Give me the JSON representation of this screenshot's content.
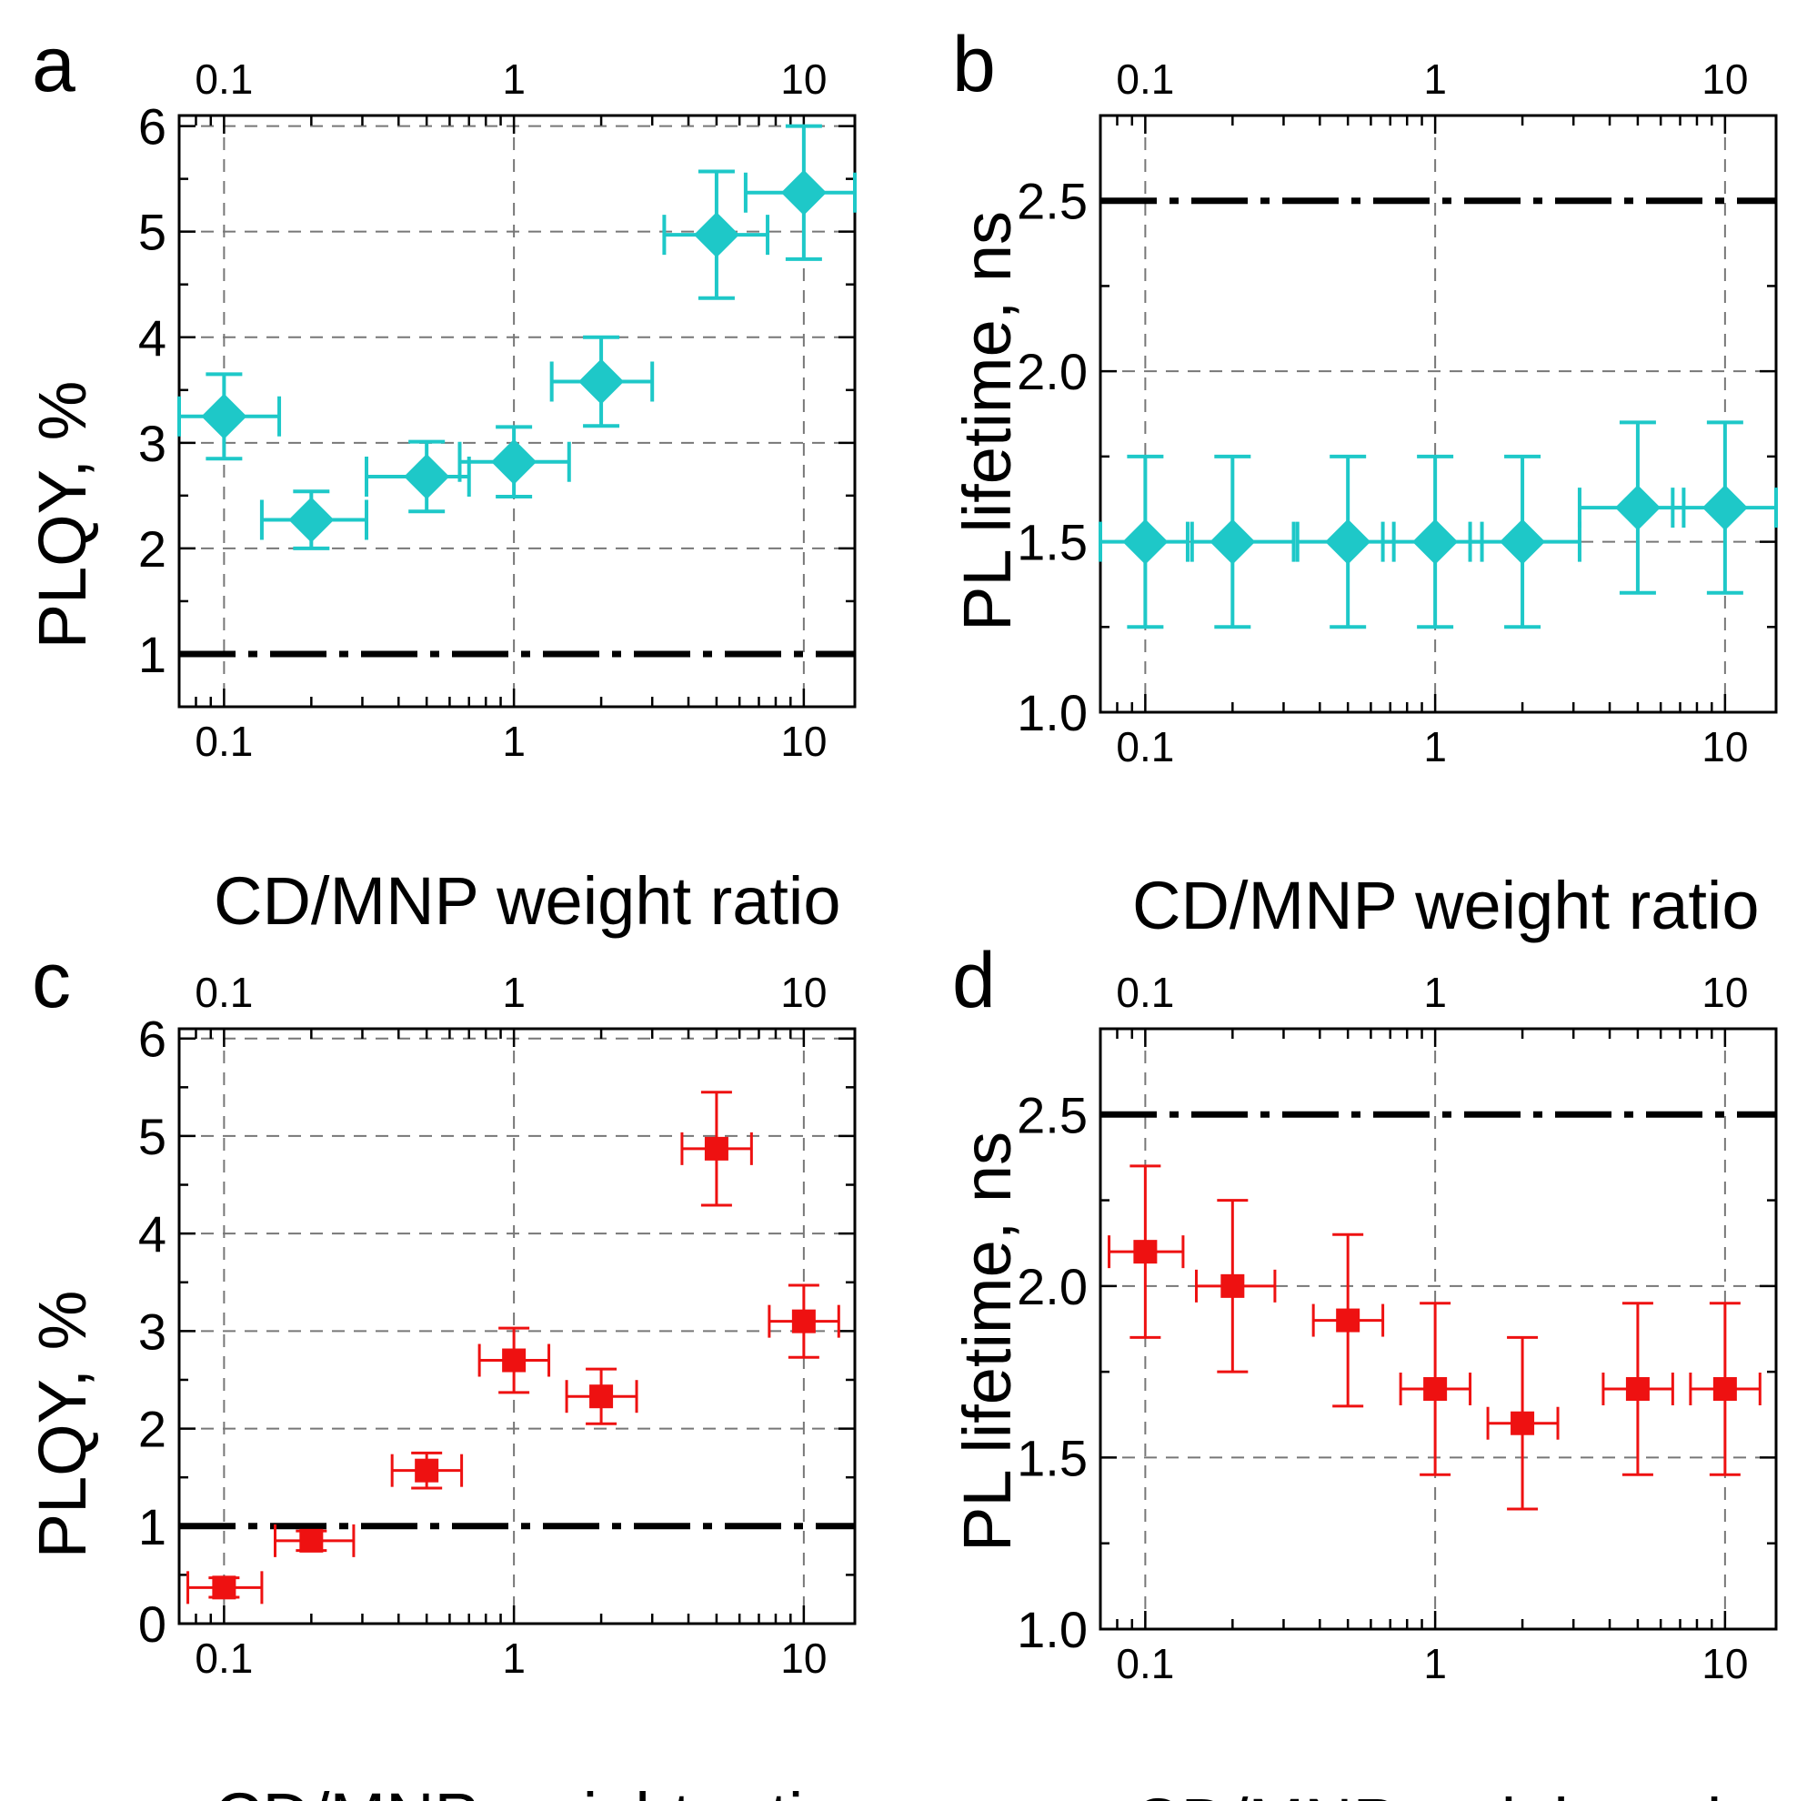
{
  "chart_data": [
    {
      "panel": "a",
      "type": "scatter",
      "xscale": "log",
      "xlim": [
        0.07,
        15
      ],
      "ylim": [
        0.5,
        6.1
      ],
      "xticks": [
        0.1,
        1,
        10
      ],
      "xtick_labels": [
        "0.1",
        "1",
        "10"
      ],
      "yticks": [
        1,
        2,
        3,
        4,
        5,
        6
      ],
      "ytick_labels": [
        "1",
        "2",
        "3",
        "4",
        "5",
        "6"
      ],
      "xlabel": "CD/MNP weight ratio",
      "ylabel": "PLQY, %",
      "reference_line": 1,
      "marker": "diamond",
      "color": "#1ec8c8",
      "series": [
        {
          "name": "PLQY",
          "points": [
            {
              "x": 0.1,
              "y": 3.25,
              "xerr_lo": 0.07,
              "xerr_hi": 0.155,
              "yerr": 0.4
            },
            {
              "x": 0.2,
              "y": 2.27,
              "xerr_lo": 0.135,
              "xerr_hi": 0.31,
              "yerr": 0.27
            },
            {
              "x": 0.5,
              "y": 2.68,
              "xerr_lo": 0.31,
              "xerr_hi": 0.7,
              "yerr": 0.33
            },
            {
              "x": 1,
              "y": 2.82,
              "xerr_lo": 0.65,
              "xerr_hi": 1.55,
              "yerr": 0.33
            },
            {
              "x": 2,
              "y": 3.58,
              "xerr_lo": 1.35,
              "xerr_hi": 3.0,
              "yerr": 0.42
            },
            {
              "x": 5,
              "y": 4.97,
              "xerr_lo": 3.3,
              "xerr_hi": 7.5,
              "yerr": 0.6
            },
            {
              "x": 10,
              "y": 5.37,
              "xerr_lo": 6.3,
              "xerr_hi": 15,
              "yerr": 0.63
            }
          ]
        }
      ]
    },
    {
      "panel": "b",
      "type": "scatter",
      "xscale": "log",
      "xlim": [
        0.07,
        15
      ],
      "ylim": [
        1.0,
        2.75
      ],
      "xticks": [
        0.1,
        1,
        10
      ],
      "xtick_labels": [
        "0.1",
        "1",
        "10"
      ],
      "yticks": [
        1.0,
        1.5,
        2.0,
        2.5
      ],
      "ytick_labels": [
        "1.0",
        "1.5",
        "2.0",
        "2.5"
      ],
      "xlabel": "CD/MNP weight ratio",
      "ylabel": "PL lifetime, ns",
      "reference_line": 2.5,
      "marker": "diamond",
      "color": "#1ec8c8",
      "series": [
        {
          "name": "PL lifetime",
          "points": [
            {
              "x": 0.1,
              "y": 1.5,
              "xerr_lo": 0.07,
              "xerr_hi": 0.14,
              "yerr": 0.25
            },
            {
              "x": 0.2,
              "y": 1.5,
              "xerr_lo": 0.145,
              "xerr_hi": 0.325,
              "yerr": 0.25
            },
            {
              "x": 0.5,
              "y": 1.5,
              "xerr_lo": 0.335,
              "xerr_hi": 0.72,
              "yerr": 0.25
            },
            {
              "x": 1,
              "y": 1.5,
              "xerr_lo": 0.66,
              "xerr_hi": 1.45,
              "yerr": 0.25
            },
            {
              "x": 2,
              "y": 1.5,
              "xerr_lo": 1.32,
              "xerr_hi": 3.15,
              "yerr": 0.25
            },
            {
              "x": 5,
              "y": 1.6,
              "xerr_lo": 3.15,
              "xerr_hi": 7.2,
              "yerr": 0.25
            },
            {
              "x": 10,
              "y": 1.6,
              "xerr_lo": 6.6,
              "xerr_hi": 15,
              "yerr": 0.25
            }
          ]
        }
      ]
    },
    {
      "panel": "c",
      "type": "scatter",
      "xscale": "log",
      "xlim": [
        0.07,
        15
      ],
      "ylim": [
        0,
        6.1
      ],
      "xticks": [
        0.1,
        1,
        10
      ],
      "xtick_labels": [
        "0.1",
        "1",
        "10"
      ],
      "yticks": [
        0,
        1,
        2,
        3,
        4,
        5,
        6
      ],
      "ytick_labels": [
        "0",
        "1",
        "2",
        "3",
        "4",
        "5",
        "6"
      ],
      "xlabel": "CD/MNP weight ratio",
      "ylabel": "PLQY, %",
      "reference_line": 1,
      "marker": "square",
      "color": "#ee1111",
      "series": [
        {
          "name": "PLQY",
          "points": [
            {
              "x": 0.1,
              "y": 0.37,
              "xerr_lo": 0.075,
              "xerr_hi": 0.135,
              "yerr": 0.1
            },
            {
              "x": 0.2,
              "y": 0.85,
              "xerr_lo": 0.15,
              "xerr_hi": 0.28,
              "yerr": 0.1
            },
            {
              "x": 0.5,
              "y": 1.57,
              "xerr_lo": 0.38,
              "xerr_hi": 0.66,
              "yerr": 0.18
            },
            {
              "x": 1,
              "y": 2.7,
              "xerr_lo": 0.76,
              "xerr_hi": 1.32,
              "yerr": 0.33
            },
            {
              "x": 2,
              "y": 2.33,
              "xerr_lo": 1.52,
              "xerr_hi": 2.65,
              "yerr": 0.28
            },
            {
              "x": 5,
              "y": 4.87,
              "xerr_lo": 3.8,
              "xerr_hi": 6.6,
              "yerr": 0.58
            },
            {
              "x": 10,
              "y": 3.1,
              "xerr_lo": 7.6,
              "xerr_hi": 13.2,
              "yerr": 0.37
            }
          ]
        }
      ]
    },
    {
      "panel": "d",
      "type": "scatter",
      "xscale": "log",
      "xlim": [
        0.07,
        15
      ],
      "ylim": [
        1.0,
        2.75
      ],
      "xticks": [
        0.1,
        1,
        10
      ],
      "xtick_labels": [
        "0.1",
        "1",
        "10"
      ],
      "yticks": [
        1.0,
        1.5,
        2.0,
        2.5
      ],
      "ytick_labels": [
        "1.0",
        "1.5",
        "2.0",
        "2.5"
      ],
      "xlabel": "CD/MNP weight ratio",
      "ylabel": "PL lifetime, ns",
      "reference_line": 2.5,
      "marker": "square",
      "color": "#ee1111",
      "series": [
        {
          "name": "PL lifetime",
          "points": [
            {
              "x": 0.1,
              "y": 2.1,
              "xerr_lo": 0.075,
              "xerr_hi": 0.135,
              "yerr": 0.25
            },
            {
              "x": 0.2,
              "y": 2.0,
              "xerr_lo": 0.15,
              "xerr_hi": 0.28,
              "yerr": 0.25
            },
            {
              "x": 0.5,
              "y": 1.9,
              "xerr_lo": 0.38,
              "xerr_hi": 0.66,
              "yerr": 0.25
            },
            {
              "x": 1,
              "y": 1.7,
              "xerr_lo": 0.76,
              "xerr_hi": 1.32,
              "yerr": 0.25
            },
            {
              "x": 2,
              "y": 1.6,
              "xerr_lo": 1.52,
              "xerr_hi": 2.65,
              "yerr": 0.25
            },
            {
              "x": 5,
              "y": 1.7,
              "xerr_lo": 3.8,
              "xerr_hi": 6.6,
              "yerr": 0.25
            },
            {
              "x": 10,
              "y": 1.7,
              "xerr_lo": 7.6,
              "xerr_hi": 13.2,
              "yerr": 0.25
            }
          ]
        }
      ]
    }
  ]
}
